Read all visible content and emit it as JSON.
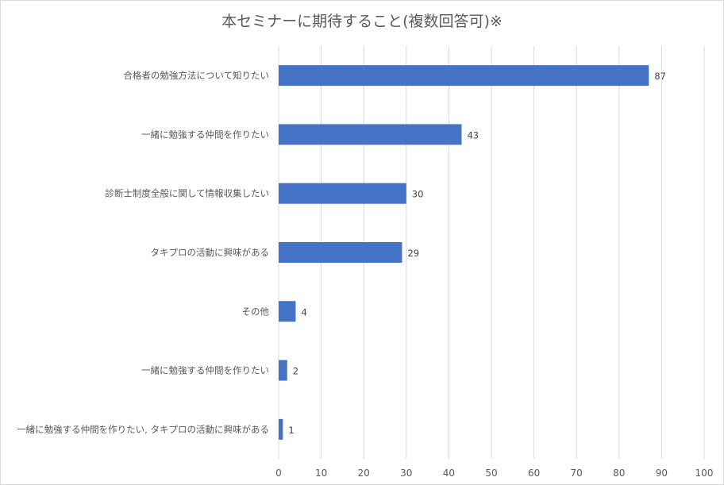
{
  "chart_data": {
    "type": "bar",
    "orientation": "horizontal",
    "title": "本セミナーに期待すること(複数回答可)※",
    "categories": [
      "合格者の勉強方法について知りたい",
      "一緒に勉強する仲間を作りたい",
      "診断士制度全般に関して情報収集したい",
      "タキプロの活動に興味がある",
      "その他",
      "一緒に勉強する仲間を作りたい",
      "一緒に勉強する仲間を作りたい, タキプロの活動に興味がある"
    ],
    "values": [
      87,
      43,
      30,
      29,
      4,
      2,
      1
    ],
    "xlim": [
      0,
      100
    ],
    "xticks": [
      0,
      10,
      20,
      30,
      40,
      50,
      60,
      70,
      80,
      90,
      100
    ],
    "grid": true,
    "data_labels": true,
    "legend": "none",
    "bar_color": "#4472c4",
    "grid_color": "#d9d9d9"
  }
}
